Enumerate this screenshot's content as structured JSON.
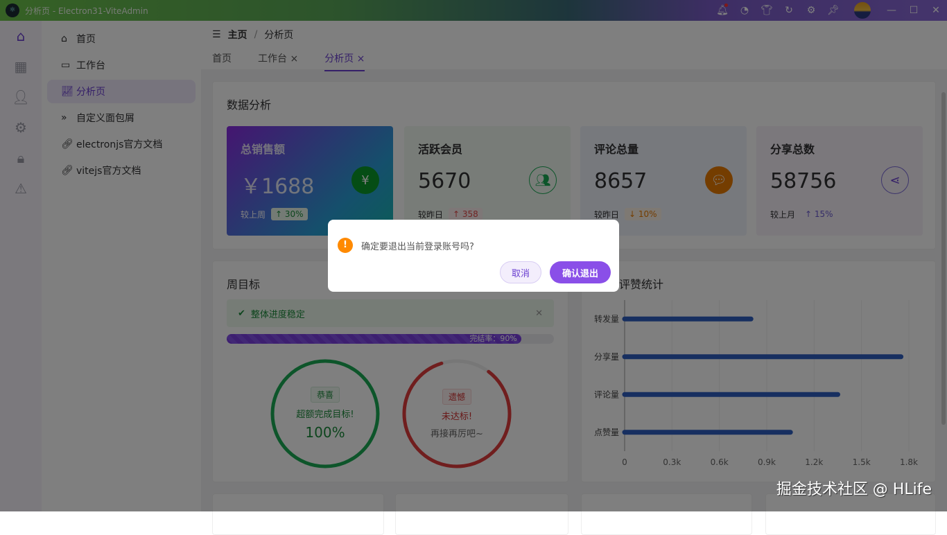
{
  "window": {
    "title": "分析页 - Electron31-ViteAdmin",
    "logo": "electron-logo",
    "icons": [
      "bell-icon",
      "dashboard-icon",
      "shirt-icon",
      "refresh-icon",
      "gear-icon",
      "pin-icon"
    ]
  },
  "iconbar": [
    "home-icon",
    "grid-icon",
    "user-icon",
    "gear-icon",
    "lock-icon",
    "warning-icon"
  ],
  "menu": [
    {
      "label": "首页",
      "icon": "home-icon"
    },
    {
      "label": "工作台",
      "icon": "monitor-icon"
    },
    {
      "label": "分析页",
      "icon": "chart-line-icon",
      "active": true
    },
    {
      "label": "自定义面包屑",
      "icon": "double-chevron-icon"
    },
    {
      "label": "electronjs官方文档",
      "icon": "link-icon"
    },
    {
      "label": "vitejs官方文档",
      "icon": "link-icon"
    }
  ],
  "breadcrumb": {
    "root": "主页",
    "sep": "/",
    "current": "分析页"
  },
  "tabs": [
    {
      "label": "首页"
    },
    {
      "label": "工作台",
      "close": "×"
    },
    {
      "label": "分析页",
      "close": "×",
      "active": true
    }
  ],
  "analysis": {
    "title": "数据分析",
    "stats": [
      {
        "title": "总销售额",
        "value": "￥1688",
        "cmp": "较上周",
        "delta": "↑ 30%",
        "icon": "yen-icon"
      },
      {
        "title": "活跃会员",
        "value": "5670",
        "cmp": "较昨日",
        "delta": "↑ 358",
        "icon": "users-icon"
      },
      {
        "title": "评论总量",
        "value": "8657",
        "cmp": "较昨日",
        "delta": "↓ 10%",
        "icon": "comment-icon"
      },
      {
        "title": "分享总数",
        "value": "58756",
        "cmp": "较上月",
        "delta": "↑ 15%",
        "icon": "share-icon"
      }
    ]
  },
  "goal": {
    "title": "周目标",
    "alert": "整体进度稳定",
    "progress_label": "完结率：90%",
    "progress": 90,
    "ring1": {
      "tag": "恭喜",
      "text": "超额完成目标!",
      "value": "100%",
      "percent": 100,
      "color": "#1aaa55"
    },
    "ring2": {
      "tag": "遗憾",
      "text": "未达标!",
      "sub": "再接再厉吧~",
      "percent": 85,
      "color": "#e03c3c"
    }
  },
  "chart_data": {
    "type": "bar",
    "orientation": "horizontal",
    "title": "转评赞统计",
    "categories": [
      "转发量",
      "分享量",
      "评论量",
      "点赞量"
    ],
    "values": [
      800,
      1750,
      1350,
      1050
    ],
    "xlim": [
      0,
      1800
    ],
    "xticks": [
      "0",
      "0.3k",
      "0.6k",
      "0.9k",
      "1.2k",
      "1.5k",
      "1.8k"
    ],
    "grid": true,
    "color": "#2f5fc0"
  },
  "dialog": {
    "message": "确定要退出当前登录账号吗?",
    "cancel": "取消",
    "confirm": "确认退出"
  },
  "watermark": "掘金技术社区 @ HLife"
}
